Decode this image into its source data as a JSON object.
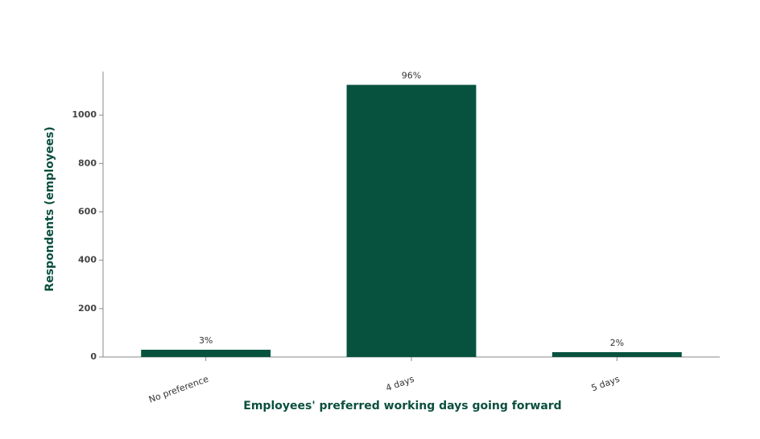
{
  "chart_data": {
    "type": "bar",
    "x_label": "Employees' preferred working days going forward",
    "y_label": "Respondents (employees)",
    "categories": [
      "No preference",
      "4 days",
      "5 days"
    ],
    "values": [
      30,
      1125,
      20
    ],
    "data_labels": [
      "3%",
      "96%",
      "2%"
    ],
    "color": "#06523f",
    "ylim": [
      0,
      1180
    ],
    "yticks": [
      0,
      200,
      400,
      600,
      800,
      1000
    ],
    "grid": false
  }
}
